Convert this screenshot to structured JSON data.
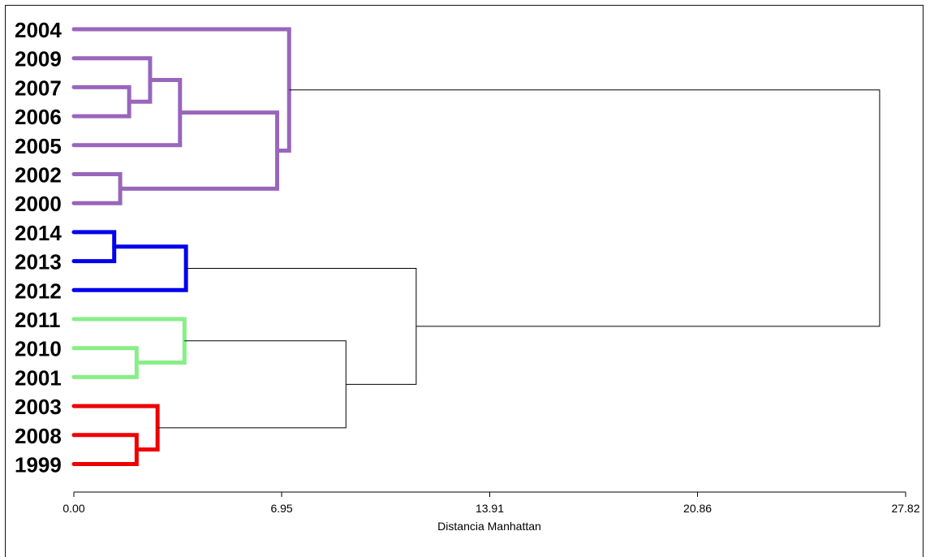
{
  "chart_data": {
    "type": "dendrogram",
    "orientation": "horizontal",
    "xlabel": "Distancia Manhattan",
    "xlim": [
      0,
      27.82
    ],
    "ticks": [
      "0.00",
      "6.95",
      "13.91",
      "20.86",
      "27.82"
    ],
    "tick_values": [
      0,
      6.95,
      13.91,
      20.86,
      27.82
    ],
    "leaves": [
      "2004",
      "2009",
      "2007",
      "2006",
      "2005",
      "2002",
      "2000",
      "2014",
      "2013",
      "2012",
      "2011",
      "2010",
      "2001",
      "2003",
      "2008",
      "1999"
    ],
    "clusters": [
      {
        "name": "",
        "color": "#9966bb",
        "leaves": [
          "2004",
          "2009",
          "2007",
          "2006",
          "2005",
          "2002",
          "2000"
        ]
      },
      {
        "name": "",
        "color": "#0000ee",
        "leaves": [
          "2014",
          "2013",
          "2012"
        ]
      },
      {
        "name": "",
        "color": "#88ee88",
        "leaves": [
          "2011",
          "2010",
          "2001"
        ]
      },
      {
        "name": "",
        "color": "#ee0000",
        "leaves": [
          "2003",
          "2008",
          "1999"
        ]
      }
    ],
    "merges": [
      {
        "id": "m1",
        "left": "2007",
        "right": "2006",
        "height": 1.85,
        "color": "#9966bb"
      },
      {
        "id": "m2",
        "left": "2009",
        "right": "m1",
        "height": 2.55,
        "color": "#9966bb"
      },
      {
        "id": "m3",
        "left": "m2",
        "right": "2005",
        "height": 3.55,
        "color": "#9966bb"
      },
      {
        "id": "m4",
        "left": "2002",
        "right": "2000",
        "height": 1.55,
        "color": "#9966bb"
      },
      {
        "id": "m5",
        "left": "m3",
        "right": "m4",
        "height": 6.8,
        "color": "#9966bb"
      },
      {
        "id": "m6",
        "left": "2004",
        "right": "m5",
        "height": 7.2,
        "color": "#9966bb"
      },
      {
        "id": "m7",
        "left": "2014",
        "right": "2013",
        "height": 1.35,
        "color": "#0000ee"
      },
      {
        "id": "m8",
        "left": "m7",
        "right": "2012",
        "height": 3.75,
        "color": "#0000ee"
      },
      {
        "id": "m9",
        "left": "2010",
        "right": "2001",
        "height": 2.1,
        "color": "#88ee88"
      },
      {
        "id": "m10",
        "left": "2011",
        "right": "m9",
        "height": 3.7,
        "color": "#88ee88"
      },
      {
        "id": "m11",
        "left": "2008",
        "right": "1999",
        "height": 2.1,
        "color": "#ee0000"
      },
      {
        "id": "m12",
        "left": "2003",
        "right": "m11",
        "height": 2.8,
        "color": "#ee0000"
      },
      {
        "id": "m13",
        "left": "m10",
        "right": "m12",
        "height": 9.1,
        "color": "#000000"
      },
      {
        "id": "m14",
        "left": "m8",
        "right": "m13",
        "height": 11.45,
        "color": "#000000"
      },
      {
        "id": "m15",
        "left": "m6",
        "right": "m14",
        "height": 26.95,
        "color": "#000000"
      }
    ],
    "grid": false
  }
}
